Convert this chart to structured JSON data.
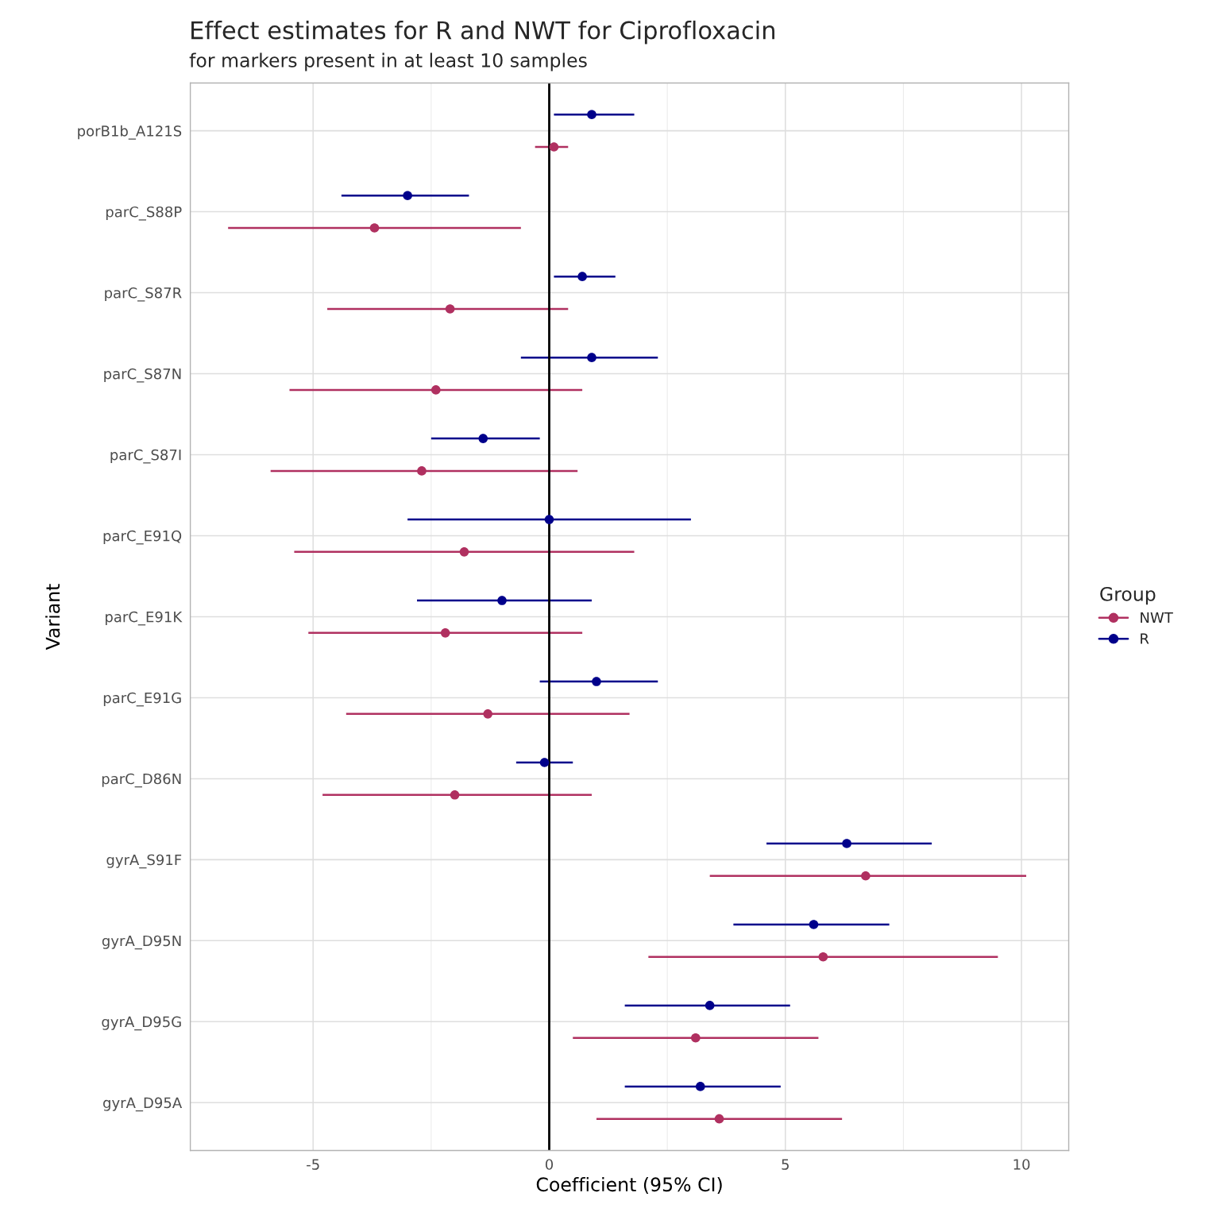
{
  "chart_data": {
    "type": "scatter",
    "orientation": "horizontal",
    "title": "Effect estimates for R and NWT for Ciprofloxacin",
    "subtitle": "for markers present in at least 10 samples",
    "xlabel": "Coefficient (95% CI)",
    "ylabel": "Variant",
    "legend_title": "Group",
    "categories": [
      "porB1b_A121S",
      "parC_S88P",
      "parC_S87R",
      "parC_S87N",
      "parC_S87I",
      "parC_E91Q",
      "parC_E91K",
      "parC_E91G",
      "parC_D86N",
      "gyrA_S91F",
      "gyrA_D95N",
      "gyrA_D95G",
      "gyrA_D95A"
    ],
    "series": [
      {
        "name": "NWT",
        "color": "#b03060",
        "values": [
          0.1,
          -3.7,
          -2.1,
          -2.4,
          -2.7,
          -1.8,
          -2.2,
          -1.3,
          -2.0,
          6.7,
          5.8,
          3.1,
          3.6
        ],
        "errors": [
          [
            -0.3,
            0.4
          ],
          [
            -6.8,
            -0.6
          ],
          [
            -4.7,
            0.4
          ],
          [
            -5.5,
            0.7
          ],
          [
            -5.9,
            0.6
          ],
          [
            -5.4,
            1.8
          ],
          [
            -5.1,
            0.7
          ],
          [
            -4.3,
            1.7
          ],
          [
            -4.8,
            0.9
          ],
          [
            3.4,
            10.1
          ],
          [
            2.1,
            9.5
          ],
          [
            0.5,
            5.7
          ],
          [
            1.0,
            6.2
          ]
        ]
      },
      {
        "name": "R",
        "color": "#00008b",
        "values": [
          0.9,
          -3.0,
          0.7,
          0.9,
          -1.4,
          0.0,
          -1.0,
          1.0,
          -0.1,
          6.3,
          5.6,
          3.4,
          3.2
        ],
        "errors": [
          [
            0.1,
            1.8
          ],
          [
            -4.4,
            -1.7
          ],
          [
            0.1,
            1.4
          ],
          [
            -0.6,
            2.3
          ],
          [
            -2.5,
            -0.2
          ],
          [
            -3.0,
            3.0
          ],
          [
            -2.8,
            0.9
          ],
          [
            -0.2,
            2.3
          ],
          [
            -0.7,
            0.5
          ],
          [
            4.6,
            8.1
          ],
          [
            3.9,
            7.2
          ],
          [
            1.6,
            5.1
          ],
          [
            1.6,
            4.9
          ]
        ]
      }
    ],
    "xlim": [
      -7.6,
      11.0
    ],
    "xticks": [
      -5,
      0,
      5,
      10
    ],
    "ref_lines": [
      {
        "axis": "x",
        "value": 0,
        "color": "#000000"
      }
    ],
    "grid": true,
    "legend": "right",
    "marker": "circle"
  }
}
